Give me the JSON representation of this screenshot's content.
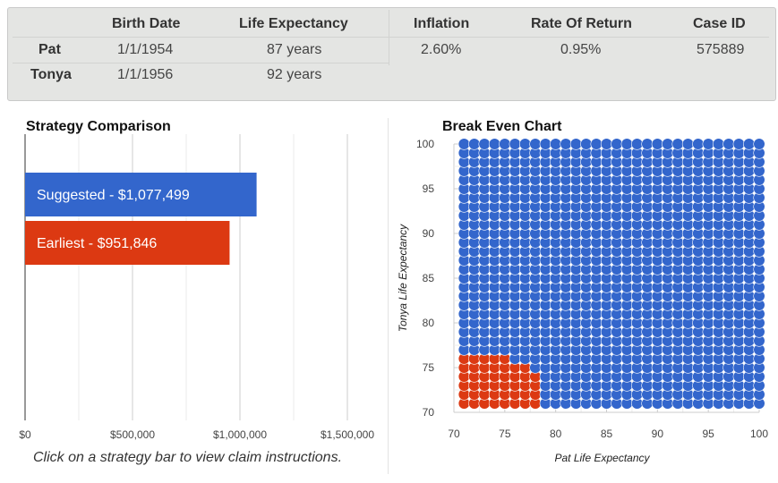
{
  "info": {
    "headers": [
      "Birth Date",
      "Life Expectancy",
      "Inflation",
      "Rate Of Return",
      "Case ID"
    ],
    "rows": [
      {
        "name": "Pat",
        "birth_date": "1/1/1954",
        "life_expectancy": "87 years",
        "inflation": "2.60%",
        "rate_of_return": "0.95%",
        "case_id": "575889"
      },
      {
        "name": "Tonya",
        "birth_date": "1/1/1956",
        "life_expectancy": "92 years"
      }
    ]
  },
  "strategy": {
    "title": "Strategy Comparison",
    "footer": "Click on a strategy bar to view claim instructions."
  },
  "break_even": {
    "title": "Break Even Chart",
    "colors": {
      "suggested": "#3366cc",
      "earliest": "#dc3912"
    }
  },
  "chart_data": [
    {
      "type": "bar",
      "orientation": "horizontal",
      "title": "Strategy Comparison",
      "categories": [
        "Suggested",
        "Earliest"
      ],
      "values": [
        1077499,
        951846
      ],
      "bar_labels": [
        "Suggested - $1,077,499",
        "Earliest - $951,846"
      ],
      "colors": [
        "#3366cc",
        "#dc3912"
      ],
      "xlim": [
        0,
        1500000
      ],
      "xticks": [
        0,
        500000,
        1000000,
        1500000
      ],
      "xtick_labels": [
        "$0",
        "$500,000",
        "$1,000,000",
        "$1,500,000"
      ],
      "grid": true,
      "legend": "none"
    },
    {
      "type": "scatter",
      "title": "Break Even Chart",
      "xlabel": "Pat Life Expectancy",
      "ylabel": "Tonya Life Expectancy",
      "xlim": [
        70,
        100
      ],
      "ylim": [
        70,
        100
      ],
      "xticks": [
        70,
        75,
        80,
        85,
        90,
        95,
        100
      ],
      "yticks": [
        70,
        75,
        80,
        85,
        90,
        95,
        100
      ],
      "x_points": [
        71,
        100
      ],
      "y_points": [
        71,
        100
      ],
      "step": 1,
      "earliest_region": [
        {
          "x_max": 75,
          "y_max": 76
        },
        {
          "x_max": 77,
          "y_max": 75
        },
        {
          "x_max": 78,
          "y_max": 74
        }
      ],
      "earliest_color": "#dc3912",
      "suggested_color": "#3366cc",
      "grid": true
    }
  ]
}
